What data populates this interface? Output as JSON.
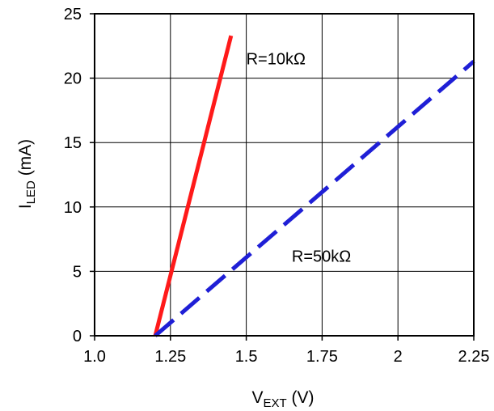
{
  "chart_data": {
    "type": "line",
    "xlabel": {
      "main": "V",
      "sub": "EXT",
      "unit": " (V)"
    },
    "ylabel": {
      "main": "I",
      "sub": "LED",
      "unit": " (mA)"
    },
    "xlim": [
      1.0,
      2.25
    ],
    "ylim": [
      0,
      25
    ],
    "grid": true,
    "x_ticks": [
      1.0,
      1.25,
      1.5,
      1.75,
      2.0,
      2.25
    ],
    "x_tick_labels": [
      "1.0",
      "1.25",
      "1.5",
      "1.75",
      "2",
      "2.25"
    ],
    "y_ticks": [
      0,
      5,
      10,
      15,
      20,
      25
    ],
    "y_tick_labels": [
      "0",
      "5",
      "10",
      "15",
      "20",
      "25"
    ],
    "series": [
      {
        "name": "R=10kΩ",
        "color": "#ff1a1a",
        "style": "solid",
        "x": [
          1.2,
          1.45
        ],
        "y": [
          0,
          23.3
        ]
      },
      {
        "name": "R=50kΩ",
        "color": "#1f1fd6",
        "style": "dashed",
        "x": [
          1.2,
          2.25
        ],
        "y": [
          0,
          21.3
        ]
      }
    ],
    "annotations": [
      {
        "text": "R=10kΩ",
        "x": 1.5,
        "y": 21.5
      },
      {
        "text": "R=50kΩ",
        "x": 1.65,
        "y": 6.2
      }
    ]
  }
}
